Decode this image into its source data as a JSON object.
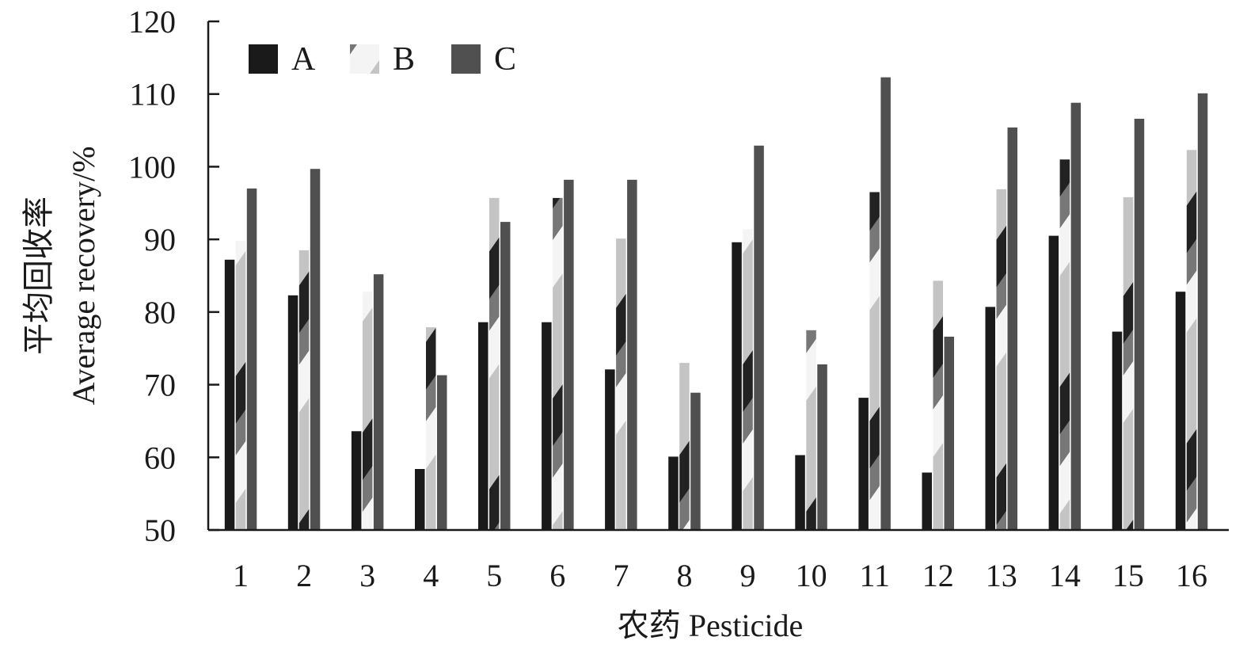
{
  "chart_data": {
    "type": "bar",
    "xlabel": "农药 Pesticide",
    "ylabel_cn": "平均回收率",
    "ylabel_en": "Average recovery/%",
    "categories": [
      "1",
      "2",
      "3",
      "4",
      "5",
      "6",
      "7",
      "8",
      "9",
      "10",
      "11",
      "12",
      "13",
      "14",
      "15",
      "16"
    ],
    "ylim": [
      50,
      120
    ],
    "yticks": [
      50,
      60,
      70,
      80,
      90,
      100,
      110,
      120
    ],
    "grid": false,
    "legend_position": "top-left",
    "series": [
      {
        "name": "A",
        "color": "#1a1a1a",
        "pattern": "solid",
        "values": [
          87.2,
          82.3,
          63.6,
          58.4,
          78.6,
          78.6,
          72.1,
          60.1,
          89.6,
          60.3,
          68.2,
          57.9,
          80.7,
          90.5,
          77.3,
          82.8
        ]
      },
      {
        "name": "B",
        "color": "#c8c8c8",
        "pattern": "gradient-stripe",
        "values": [
          89.8,
          88.5,
          82.8,
          77.9,
          95.7,
          95.7,
          90.1,
          73.0,
          91.4,
          77.5,
          96.5,
          84.3,
          96.9,
          101.0,
          95.8,
          102.3
        ]
      },
      {
        "name": "C",
        "color": "#505050",
        "pattern": "solid",
        "values": [
          97.0,
          99.7,
          85.2,
          71.3,
          92.4,
          98.2,
          98.2,
          68.9,
          102.9,
          72.8,
          112.3,
          76.6,
          105.4,
          108.8,
          106.6,
          110.1
        ]
      }
    ]
  }
}
